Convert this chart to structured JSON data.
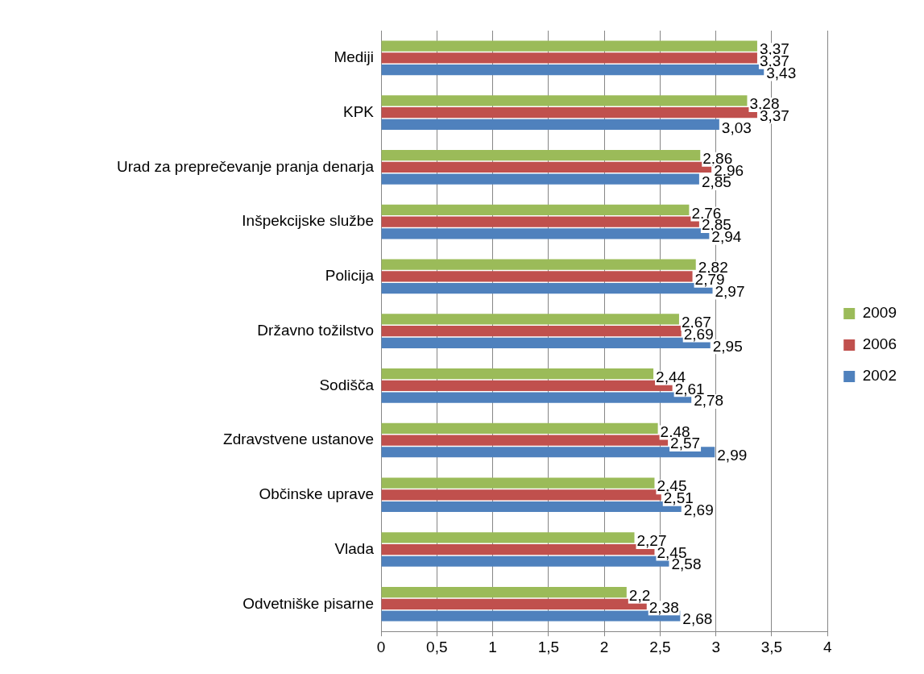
{
  "chart_data": {
    "type": "bar",
    "orientation": "horizontal",
    "categories": [
      "Mediji",
      "KPK",
      "Urad za preprečevanje pranja denarja",
      "Inšpekcijske službe",
      "Policija",
      "Državno tožilstvo",
      "Sodišča",
      "Zdravstvene ustanove",
      "Občinske uprave",
      "Vlada",
      "Odvetniške pisarne"
    ],
    "series": [
      {
        "name": "2009",
        "color": "#9bbb59",
        "values": [
          3.37,
          3.28,
          2.86,
          2.76,
          2.82,
          2.67,
          2.44,
          2.48,
          2.45,
          2.27,
          2.2
        ],
        "value_labels": [
          "3,37",
          "3,28",
          "2,86",
          "2,76",
          "2,82",
          "2,67",
          "2,44",
          "2,48",
          "2,45",
          "2,27",
          "2,2"
        ]
      },
      {
        "name": "2006",
        "color": "#c0504d",
        "values": [
          3.37,
          3.37,
          2.96,
          2.85,
          2.79,
          2.69,
          2.61,
          2.57,
          2.51,
          2.45,
          2.38
        ],
        "value_labels": [
          "3,37",
          "3,37",
          "2,96",
          "2,85",
          "2,79",
          "2,69",
          "2,61",
          "2,57",
          "2,51",
          "2,45",
          "2,38"
        ]
      },
      {
        "name": "2002",
        "color": "#4f81bd",
        "values": [
          3.43,
          3.03,
          2.85,
          2.94,
          2.97,
          2.95,
          2.78,
          2.99,
          2.69,
          2.58,
          2.68
        ],
        "value_labels": [
          "3,43",
          "3,03",
          "2,85",
          "2,94",
          "2,97",
          "2,95",
          "2,78",
          "2,99",
          "2,69",
          "2,58",
          "2,68"
        ]
      }
    ],
    "xlim": [
      0,
      4
    ],
    "xticks": [
      0,
      {
        "value": 0.5,
        "label": "0,5"
      },
      1,
      {
        "value": 1.5,
        "label": "1,5"
      },
      2,
      {
        "value": 2.5,
        "label": "2,5"
      },
      3,
      {
        "value": 3.5,
        "label": "3,5"
      },
      4
    ],
    "grid": "x",
    "legend": "right"
  }
}
